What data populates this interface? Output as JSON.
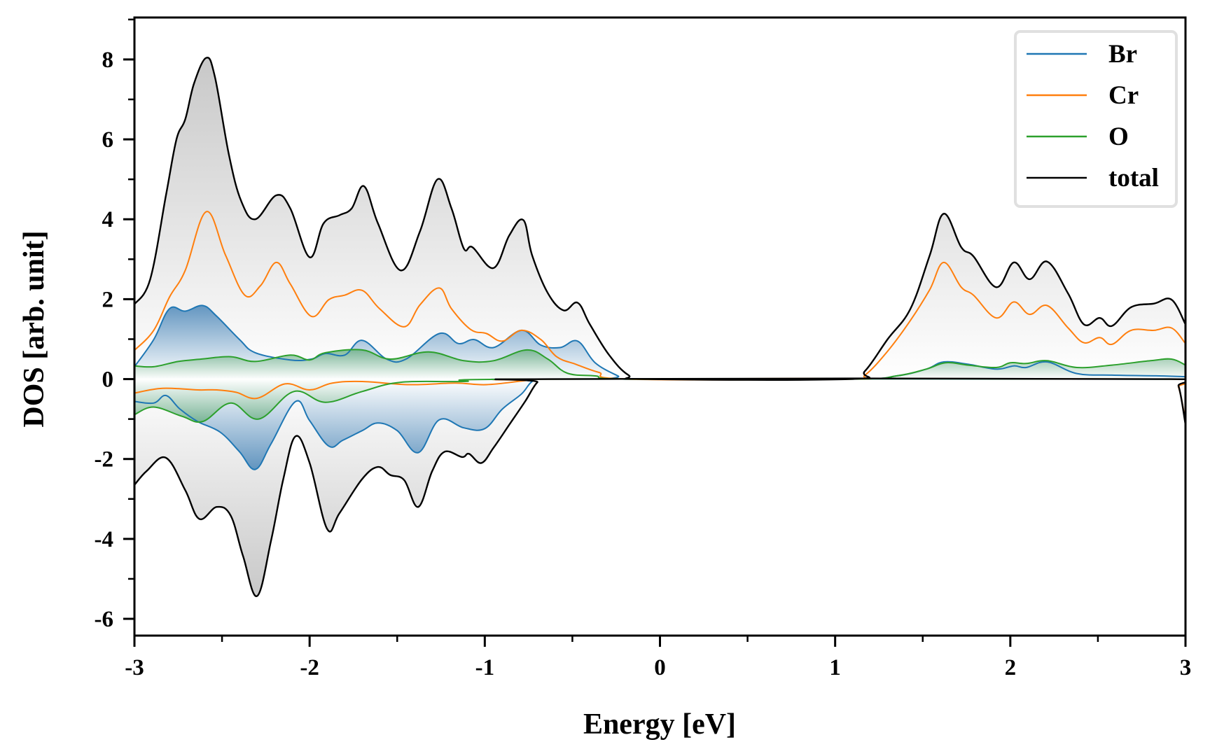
{
  "chart_data": {
    "type": "line",
    "title": "",
    "xlabel": "Energy [eV]",
    "ylabel": "DOS [arb. unit]",
    "xlim": [
      -3,
      3
    ],
    "ylim": [
      -6.42,
      9.05
    ],
    "xticks": [
      -3,
      -2,
      -1,
      0,
      1,
      2,
      3
    ],
    "xtick_labels": [
      "-3",
      "-2",
      "-1",
      "0",
      "1",
      "2",
      "3"
    ],
    "x_minor_step": 0.5,
    "yticks": [
      -6,
      -4,
      -2,
      0,
      2,
      4,
      6,
      8
    ],
    "ytick_labels": [
      "-6",
      "-4",
      "-2",
      "0",
      "2",
      "4",
      "6",
      "8"
    ],
    "y_minor_step": 1,
    "grid": false,
    "legend": {
      "position": "top-right",
      "entries": [
        "Br",
        "Cr",
        "O",
        "total"
      ]
    },
    "series": [
      {
        "name": "Br",
        "color": "#1f77b4",
        "filled": true,
        "segments": [
          [
            [
              -3,
              0.31
            ],
            [
              -2.89,
              0.99
            ],
            [
              -2.8,
              1.76
            ],
            [
              -2.71,
              1.7
            ],
            [
              -2.61,
              1.84
            ],
            [
              -2.53,
              1.57
            ],
            [
              -2.4,
              0.99
            ],
            [
              -2.31,
              0.66
            ],
            [
              -2.11,
              0.48
            ],
            [
              -1.99,
              0.5
            ],
            [
              -1.91,
              0.64
            ],
            [
              -1.8,
              0.6
            ],
            [
              -1.7,
              0.97
            ],
            [
              -1.56,
              0.5
            ],
            [
              -1.45,
              0.5
            ],
            [
              -1.26,
              1.14
            ],
            [
              -1.15,
              0.89
            ],
            [
              -1.06,
              0.99
            ],
            [
              -0.95,
              0.79
            ],
            [
              -0.79,
              1.22
            ],
            [
              -0.68,
              0.85
            ],
            [
              -0.57,
              0.79
            ],
            [
              -0.47,
              0.95
            ],
            [
              -0.37,
              0.41
            ],
            [
              -0.24,
              0.08
            ],
            [
              -0.18,
              0
            ],
            [
              1.08,
              0
            ],
            [
              1.35,
              0.08
            ],
            [
              1.52,
              0.25
            ],
            [
              1.62,
              0.43
            ],
            [
              1.76,
              0.37
            ],
            [
              1.92,
              0.25
            ],
            [
              2.02,
              0.33
            ],
            [
              2.09,
              0.29
            ],
            [
              2.21,
              0.43
            ],
            [
              2.38,
              0.14
            ],
            [
              2.58,
              0.1
            ],
            [
              2.85,
              0.08
            ],
            [
              3.0,
              0.06
            ]
          ],
          [
            [
              -3,
              -0.56
            ],
            [
              -2.89,
              -0.6
            ],
            [
              -2.82,
              -0.41
            ],
            [
              -2.74,
              -0.75
            ],
            [
              -2.64,
              -1.06
            ],
            [
              -2.51,
              -1.33
            ],
            [
              -2.4,
              -1.82
            ],
            [
              -2.31,
              -2.26
            ],
            [
              -2.22,
              -1.62
            ],
            [
              -2.08,
              -0.56
            ],
            [
              -2.0,
              -1.04
            ],
            [
              -1.89,
              -1.68
            ],
            [
              -1.81,
              -1.53
            ],
            [
              -1.7,
              -1.29
            ],
            [
              -1.61,
              -1.1
            ],
            [
              -1.5,
              -1.29
            ],
            [
              -1.38,
              -1.84
            ],
            [
              -1.26,
              -1.02
            ],
            [
              -1.12,
              -1.22
            ],
            [
              -1.0,
              -1.24
            ],
            [
              -0.9,
              -0.75
            ],
            [
              -0.79,
              -0.37
            ],
            [
              -0.73,
              -0.06
            ],
            [
              -0.66,
              0
            ],
            [
              2.91,
              0
            ],
            [
              3.0,
              -0.02
            ]
          ]
        ]
      },
      {
        "name": "Cr",
        "color": "#ff7f0e",
        "filled": false,
        "segments": [
          [
            [
              -3,
              0.72
            ],
            [
              -2.89,
              1.22
            ],
            [
              -2.8,
              2.05
            ],
            [
              -2.71,
              2.72
            ],
            [
              -2.59,
              4.19
            ],
            [
              -2.48,
              3.1
            ],
            [
              -2.37,
              2.1
            ],
            [
              -2.28,
              2.34
            ],
            [
              -2.19,
              2.92
            ],
            [
              -2.11,
              2.38
            ],
            [
              -1.99,
              1.57
            ],
            [
              -1.89,
              1.99
            ],
            [
              -1.8,
              2.1
            ],
            [
              -1.7,
              2.22
            ],
            [
              -1.6,
              1.76
            ],
            [
              -1.46,
              1.31
            ],
            [
              -1.37,
              1.86
            ],
            [
              -1.26,
              2.28
            ],
            [
              -1.19,
              1.76
            ],
            [
              -1.08,
              1.24
            ],
            [
              -0.99,
              1.14
            ],
            [
              -0.9,
              0.95
            ],
            [
              -0.79,
              1.22
            ],
            [
              -0.68,
              0.99
            ],
            [
              -0.59,
              0.56
            ],
            [
              -0.48,
              0.37
            ],
            [
              -0.35,
              0.17
            ],
            [
              -0.18,
              0
            ],
            [
              1.08,
              0
            ],
            [
              1.17,
              0.1
            ],
            [
              1.3,
              0.7
            ],
            [
              1.43,
              1.47
            ],
            [
              1.54,
              2.24
            ],
            [
              1.62,
              2.92
            ],
            [
              1.72,
              2.3
            ],
            [
              1.79,
              2.1
            ],
            [
              1.92,
              1.53
            ],
            [
              2.02,
              1.93
            ],
            [
              2.11,
              1.62
            ],
            [
              2.21,
              1.84
            ],
            [
              2.33,
              1.28
            ],
            [
              2.42,
              0.91
            ],
            [
              2.51,
              1.04
            ],
            [
              2.58,
              0.87
            ],
            [
              2.69,
              1.22
            ],
            [
              2.82,
              1.22
            ],
            [
              2.92,
              1.28
            ],
            [
              3.0,
              0.89
            ]
          ],
          [
            [
              -3,
              -0.35
            ],
            [
              -2.84,
              -0.23
            ],
            [
              -2.64,
              -0.27
            ],
            [
              -2.53,
              -0.27
            ],
            [
              -2.42,
              -0.33
            ],
            [
              -2.3,
              -0.48
            ],
            [
              -2.14,
              -0.12
            ],
            [
              -2.0,
              -0.27
            ],
            [
              -1.87,
              -0.1
            ],
            [
              -1.7,
              -0.06
            ],
            [
              -1.43,
              -0.14
            ],
            [
              -1.17,
              -0.1
            ],
            [
              -0.99,
              -0.14
            ],
            [
              -0.77,
              -0.04
            ],
            [
              -0.64,
              0
            ],
            [
              2.91,
              0
            ],
            [
              2.96,
              -0.2
            ],
            [
              3.0,
              -1.05
            ]
          ]
        ]
      },
      {
        "name": "O",
        "color": "#2ca02c",
        "filled": true,
        "segments": [
          [
            [
              -3,
              0.33
            ],
            [
              -2.89,
              0.31
            ],
            [
              -2.75,
              0.44
            ],
            [
              -2.62,
              0.5
            ],
            [
              -2.45,
              0.56
            ],
            [
              -2.31,
              0.44
            ],
            [
              -2.11,
              0.6
            ],
            [
              -2.0,
              0.48
            ],
            [
              -1.91,
              0.66
            ],
            [
              -1.7,
              0.73
            ],
            [
              -1.54,
              0.5
            ],
            [
              -1.32,
              0.68
            ],
            [
              -1.12,
              0.46
            ],
            [
              -0.95,
              0.46
            ],
            [
              -0.76,
              0.73
            ],
            [
              -0.64,
              0.5
            ],
            [
              -0.53,
              0.15
            ],
            [
              -0.37,
              0.08
            ],
            [
              -0.18,
              0
            ],
            [
              1.08,
              0
            ],
            [
              1.35,
              0.08
            ],
            [
              1.52,
              0.25
            ],
            [
              1.63,
              0.41
            ],
            [
              1.76,
              0.35
            ],
            [
              1.92,
              0.29
            ],
            [
              2.0,
              0.41
            ],
            [
              2.09,
              0.39
            ],
            [
              2.21,
              0.46
            ],
            [
              2.38,
              0.29
            ],
            [
              2.58,
              0.35
            ],
            [
              2.8,
              0.46
            ],
            [
              2.92,
              0.5
            ],
            [
              3.0,
              0.35
            ]
          ],
          [
            [
              -3,
              -0.89
            ],
            [
              -2.89,
              -0.7
            ],
            [
              -2.73,
              -0.93
            ],
            [
              -2.61,
              -1.06
            ],
            [
              -2.45,
              -0.6
            ],
            [
              -2.29,
              -1.0
            ],
            [
              -2.09,
              -0.31
            ],
            [
              -1.91,
              -0.58
            ],
            [
              -1.7,
              -0.31
            ],
            [
              -1.48,
              -0.08
            ],
            [
              -1.12,
              -0.06
            ],
            [
              -0.73,
              0
            ],
            [
              2.91,
              0
            ],
            [
              3.0,
              -0.06
            ]
          ]
        ]
      },
      {
        "name": "total",
        "color": "#000000",
        "filled": true,
        "segments": [
          [
            [
              -3,
              1.87
            ],
            [
              -2.91,
              2.5
            ],
            [
              -2.82,
              4.6
            ],
            [
              -2.76,
              6.0
            ],
            [
              -2.71,
              6.5
            ],
            [
              -2.66,
              7.4
            ],
            [
              -2.59,
              8.04
            ],
            [
              -2.54,
              7.55
            ],
            [
              -2.46,
              5.6
            ],
            [
              -2.39,
              4.45
            ],
            [
              -2.31,
              4.0
            ],
            [
              -2.19,
              4.6
            ],
            [
              -2.11,
              4.27
            ],
            [
              -2.0,
              3.05
            ],
            [
              -1.92,
              3.9
            ],
            [
              -1.83,
              4.1
            ],
            [
              -1.76,
              4.27
            ],
            [
              -1.69,
              4.83
            ],
            [
              -1.61,
              3.9
            ],
            [
              -1.48,
              2.72
            ],
            [
              -1.37,
              3.7
            ],
            [
              -1.27,
              5.0
            ],
            [
              -1.19,
              4.27
            ],
            [
              -1.12,
              3.27
            ],
            [
              -1.07,
              3.3
            ],
            [
              -0.95,
              2.78
            ],
            [
              -0.86,
              3.6
            ],
            [
              -0.78,
              3.98
            ],
            [
              -0.73,
              3.1
            ],
            [
              -0.64,
              2.15
            ],
            [
              -0.55,
              1.72
            ],
            [
              -0.47,
              1.91
            ],
            [
              -0.4,
              1.37
            ],
            [
              -0.29,
              0.6
            ],
            [
              -0.18,
              0.1
            ],
            [
              -0.07,
              0
            ],
            [
              1.08,
              0
            ],
            [
              1.17,
              0.2
            ],
            [
              1.3,
              1.0
            ],
            [
              1.43,
              1.76
            ],
            [
              1.54,
              3.1
            ],
            [
              1.62,
              4.14
            ],
            [
              1.72,
              3.3
            ],
            [
              1.79,
              3.07
            ],
            [
              1.92,
              2.3
            ],
            [
              2.02,
              2.92
            ],
            [
              2.11,
              2.5
            ],
            [
              2.21,
              2.94
            ],
            [
              2.33,
              2.14
            ],
            [
              2.42,
              1.37
            ],
            [
              2.51,
              1.53
            ],
            [
              2.58,
              1.33
            ],
            [
              2.69,
              1.8
            ],
            [
              2.82,
              1.89
            ],
            [
              2.92,
              1.99
            ],
            [
              3.0,
              1.37
            ]
          ],
          [
            [
              -3,
              -2.65
            ],
            [
              -2.93,
              -2.3
            ],
            [
              -2.82,
              -1.97
            ],
            [
              -2.71,
              -2.78
            ],
            [
              -2.63,
              -3.5
            ],
            [
              -2.53,
              -3.2
            ],
            [
              -2.45,
              -3.42
            ],
            [
              -2.38,
              -4.43
            ],
            [
              -2.3,
              -5.43
            ],
            [
              -2.22,
              -4.04
            ],
            [
              -2.15,
              -2.5
            ],
            [
              -2.08,
              -1.43
            ],
            [
              -2.0,
              -2.1
            ],
            [
              -1.9,
              -3.75
            ],
            [
              -1.83,
              -3.36
            ],
            [
              -1.7,
              -2.5
            ],
            [
              -1.61,
              -2.2
            ],
            [
              -1.54,
              -2.4
            ],
            [
              -1.46,
              -2.53
            ],
            [
              -1.38,
              -3.2
            ],
            [
              -1.3,
              -2.3
            ],
            [
              -1.23,
              -1.82
            ],
            [
              -1.13,
              -1.95
            ],
            [
              -1.09,
              -1.87
            ],
            [
              -1.02,
              -2.1
            ],
            [
              -0.95,
              -1.72
            ],
            [
              -0.86,
              -1.14
            ],
            [
              -0.77,
              -0.56
            ],
            [
              -0.7,
              -0.08
            ],
            [
              -0.64,
              0
            ],
            [
              2.91,
              0
            ],
            [
              2.96,
              -0.17
            ],
            [
              3.0,
              -1.14
            ]
          ]
        ]
      }
    ]
  }
}
